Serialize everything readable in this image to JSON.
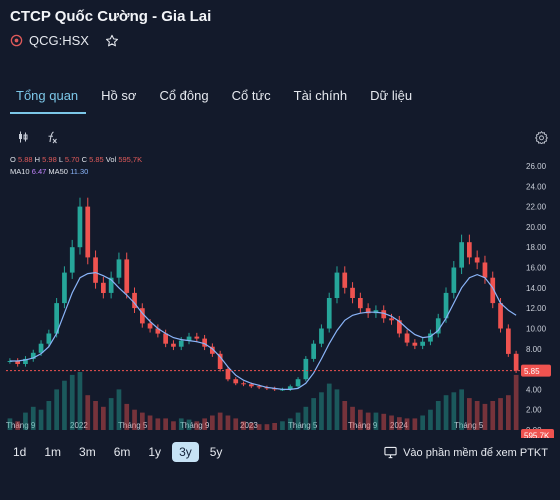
{
  "header": {
    "title": "CTCP Quốc Cường - Gia Lai",
    "ticker": "QCG:HSX"
  },
  "tabs": [
    {
      "label": "Tổng quan",
      "active": true
    },
    {
      "label": "Hồ sơ",
      "active": false
    },
    {
      "label": "Cổ đông",
      "active": false
    },
    {
      "label": "Cổ tức",
      "active": false
    },
    {
      "label": "Tài chính",
      "active": false
    },
    {
      "label": "Dữ liệu",
      "active": false
    }
  ],
  "legend": {
    "o_label": "O",
    "o_value": "5.88",
    "h_label": "H",
    "h_value": "5.98",
    "l_label": "L",
    "l_value": "5.70",
    "c_label": "C",
    "c_value": "5.85",
    "vol_label": "Vol",
    "vol_value": "595,7K",
    "ma10_label": "MA10",
    "ma10_value": "6.47",
    "ma50_label": "MA50",
    "ma50_value": "11.30"
  },
  "ranges": {
    "items": [
      "1d",
      "1m",
      "3m",
      "6m",
      "1y",
      "3y",
      "5y"
    ],
    "active": "3y"
  },
  "ptkt_label": "Vào phần mềm để xem PTKT",
  "colors": {
    "background": "#131a2b",
    "accent": "#7cc7e8",
    "up": "#26a69a",
    "down": "#ef5350",
    "ma10": "#c084fc",
    "ma50": "#8ab4f8"
  },
  "chart_data": {
    "type": "candlestick",
    "y_ticks": [
      "0.00",
      "2.00",
      "4.00",
      "6.00",
      "8.00",
      "10.00",
      "12.00",
      "14.00",
      "16.00",
      "18.00",
      "20.00",
      "22.00",
      "24.00",
      "26.00"
    ],
    "ylim": [
      0,
      26
    ],
    "x_labels": [
      "Tháng 9",
      "2022",
      "Tháng 5",
      "Tháng 9",
      "2023",
      "Tháng 5",
      "Tháng 9",
      "2024",
      "Tháng 5"
    ],
    "last_price": 5.85,
    "last_price_label": "5.85",
    "last_volume_label": "595.7K",
    "close_series": [
      6.8,
      6.5,
      7.0,
      7.6,
      8.5,
      9.5,
      12.5,
      15.5,
      18.0,
      22.0,
      17.0,
      14.5,
      13.5,
      15.0,
      16.8,
      13.5,
      12.0,
      10.5,
      10.0,
      9.5,
      8.5,
      8.2,
      8.8,
      9.2,
      9.0,
      8.2,
      7.5,
      6.0,
      5.0,
      4.6,
      4.5,
      4.3,
      4.2,
      4.1,
      4.0,
      4.0,
      4.3,
      5.0,
      7.0,
      8.5,
      10.0,
      13.0,
      15.5,
      14.0,
      13.0,
      12.0,
      11.5,
      11.8,
      11.0,
      10.8,
      9.5,
      8.6,
      8.3,
      8.7,
      9.5,
      11.0,
      13.5,
      16.0,
      18.5,
      17.0,
      16.5,
      15.0,
      12.5,
      10.0,
      7.5,
      5.85
    ],
    "ma50_series": [
      6.8,
      6.8,
      6.9,
      7.1,
      7.5,
      8.2,
      9.5,
      11.5,
      13.5,
      15.0,
      15.4,
      15.5,
      15.2,
      14.8,
      14.0,
      13.3,
      12.5,
      11.5,
      10.7,
      10.0,
      9.5,
      9.1,
      8.9,
      8.8,
      8.7,
      8.5,
      8.0,
      7.2,
      6.2,
      5.4,
      4.9,
      4.6,
      4.4,
      4.2,
      4.1,
      4.0,
      4.0,
      4.1,
      4.6,
      5.6,
      7.0,
      8.5,
      9.8,
      10.8,
      11.3,
      11.5,
      11.6,
      11.6,
      11.5,
      11.2,
      10.7,
      10.0,
      9.4,
      9.1,
      9.2,
      9.8,
      11.0,
      12.5,
      14.0,
      15.0,
      15.3,
      15.0,
      14.0,
      12.5,
      11.8,
      11.3
    ],
    "volume_levels": [
      0.2,
      0.15,
      0.3,
      0.4,
      0.35,
      0.5,
      0.7,
      0.85,
      0.95,
      1.0,
      0.6,
      0.5,
      0.4,
      0.55,
      0.7,
      0.45,
      0.35,
      0.3,
      0.25,
      0.2,
      0.2,
      0.15,
      0.2,
      0.18,
      0.15,
      0.2,
      0.25,
      0.3,
      0.25,
      0.2,
      0.15,
      0.12,
      0.1,
      0.1,
      0.12,
      0.15,
      0.2,
      0.3,
      0.4,
      0.55,
      0.65,
      0.8,
      0.7,
      0.5,
      0.4,
      0.35,
      0.3,
      0.3,
      0.28,
      0.25,
      0.22,
      0.2,
      0.2,
      0.25,
      0.35,
      0.5,
      0.6,
      0.65,
      0.7,
      0.55,
      0.5,
      0.45,
      0.5,
      0.55,
      0.6,
      0.95
    ]
  }
}
